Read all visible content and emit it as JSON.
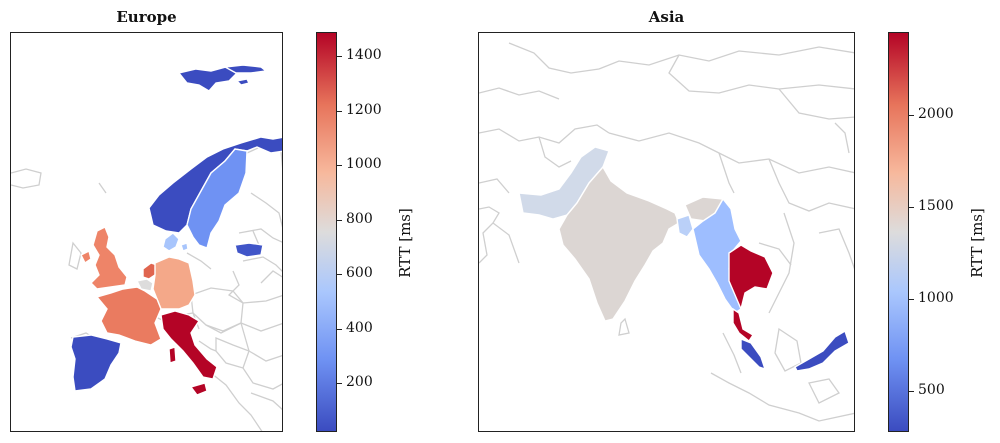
{
  "panels": [
    {
      "title": "Europe",
      "colorbar": {
        "label": "RTT [ms]",
        "ticks": [
          "200",
          "400",
          "600",
          "800",
          "1000",
          "1200",
          "1400"
        ],
        "tick_values": [
          200,
          400,
          600,
          800,
          1000,
          1200,
          1400
        ],
        "min": 20,
        "max": 1490,
        "colormap": "coolwarm"
      },
      "countries": [
        {
          "name": "Norway",
          "color": "#3b4cc0"
        },
        {
          "name": "Sweden",
          "color": "#6f92f3"
        },
        {
          "name": "Finland",
          "color": "#3b4cc0"
        },
        {
          "name": "Denmark",
          "color": "#a8c5fc"
        },
        {
          "name": "Estonia",
          "color": "#4055c8"
        },
        {
          "name": "United Kingdom",
          "color": "#ee8468"
        },
        {
          "name": "Netherlands",
          "color": "#e0654f"
        },
        {
          "name": "Belgium",
          "color": "#dddcdc"
        },
        {
          "name": "Germany",
          "color": "#f4a889"
        },
        {
          "name": "France",
          "color": "#ea7b60"
        },
        {
          "name": "Spain",
          "color": "#3b4cc0"
        },
        {
          "name": "Italy",
          "color": "#b40426"
        }
      ]
    },
    {
      "title": "Asia",
      "colorbar": {
        "label": "RTT [ms]",
        "ticks": [
          "500",
          "1000",
          "1500",
          "2000"
        ],
        "tick_values": [
          500,
          1000,
          1500,
          2000
        ],
        "min": 280,
        "max": 2450,
        "colormap": "coolwarm"
      },
      "countries": [
        {
          "name": "Pakistan",
          "color": "#d1dae9"
        },
        {
          "name": "India",
          "color": "#dcd6d3"
        },
        {
          "name": "Bangladesh",
          "color": "#bad0f8"
        },
        {
          "name": "Myanmar",
          "color": "#9ebeff"
        },
        {
          "name": "Thailand",
          "color": "#b40426"
        },
        {
          "name": "Malaysia",
          "color": "#3b4cc0"
        }
      ]
    }
  ]
}
